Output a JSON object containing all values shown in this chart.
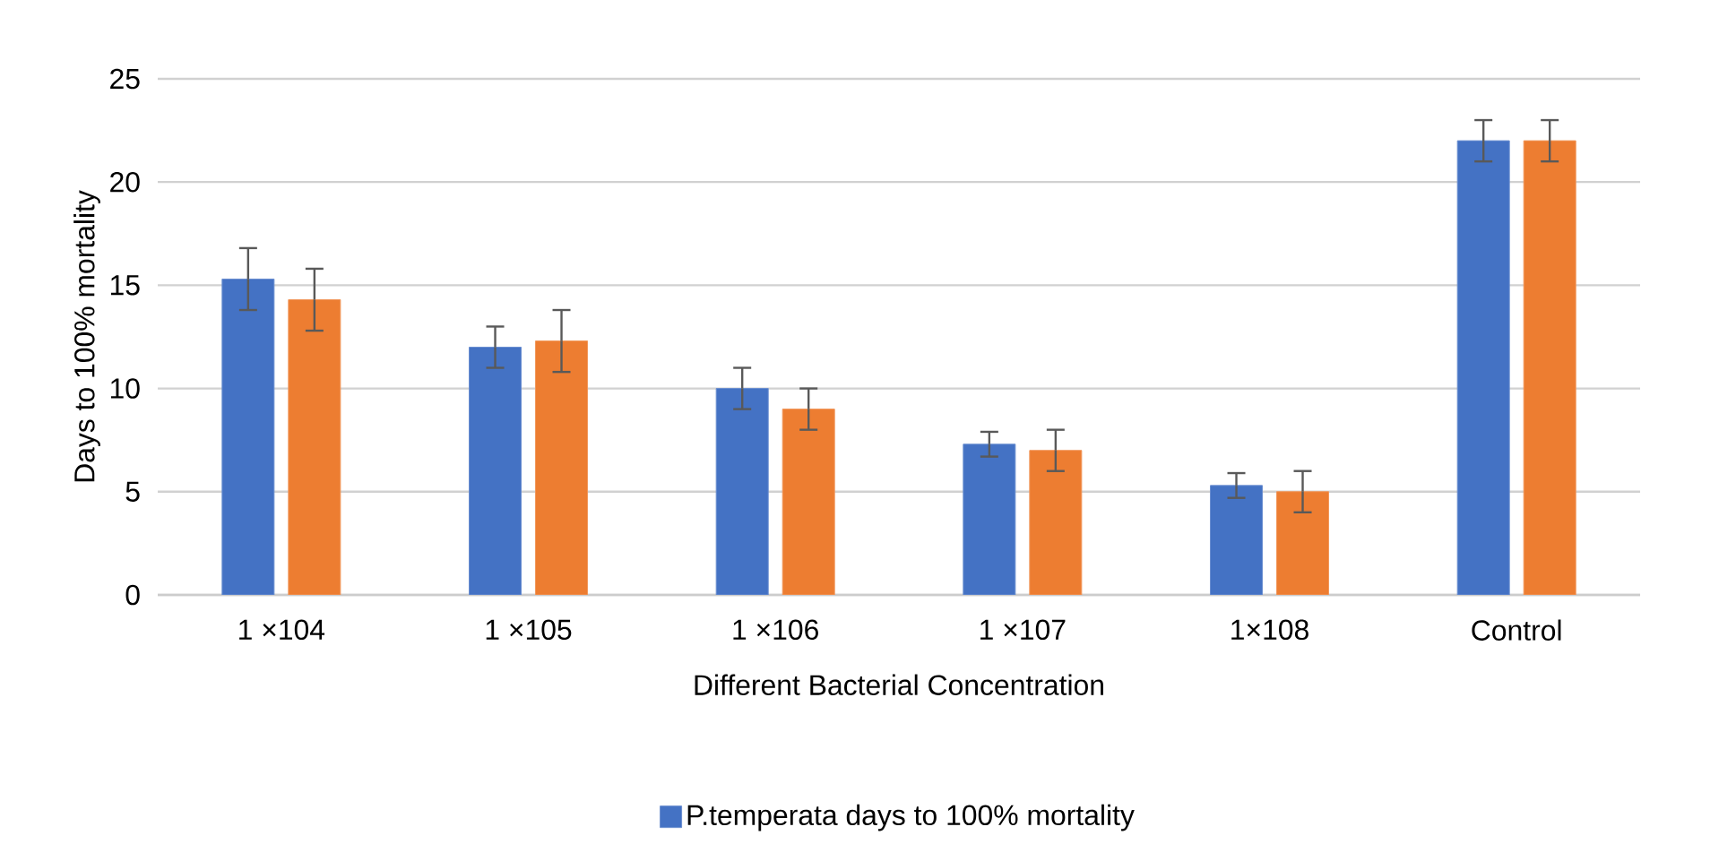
{
  "chart_data": {
    "type": "bar",
    "xlabel": "Different Bacterial Concentration",
    "ylabel": "Days to 100% mortality",
    "categories": [
      "1 ×104",
      "1 ×105",
      "1 ×106",
      "1 ×107",
      "1×108",
      "Control"
    ],
    "series": [
      {
        "name": "P.temperata days to 100% mortality",
        "color": "#4472c4",
        "values": [
          15.3,
          12,
          10,
          7.3,
          5.3,
          22
        ],
        "errors": [
          1.5,
          1,
          1,
          0.6,
          0.6,
          1
        ]
      },
      {
        "color": "#ed7d31",
        "values": [
          14.3,
          12.3,
          9,
          7,
          5,
          22
        ],
        "errors": [
          1.5,
          1.5,
          1,
          1,
          1,
          1
        ]
      }
    ],
    "ylim": [
      0,
      25
    ],
    "yticks": [
      0,
      5,
      10,
      15,
      20,
      25
    ],
    "grid": "y",
    "legend": "bottom"
  }
}
